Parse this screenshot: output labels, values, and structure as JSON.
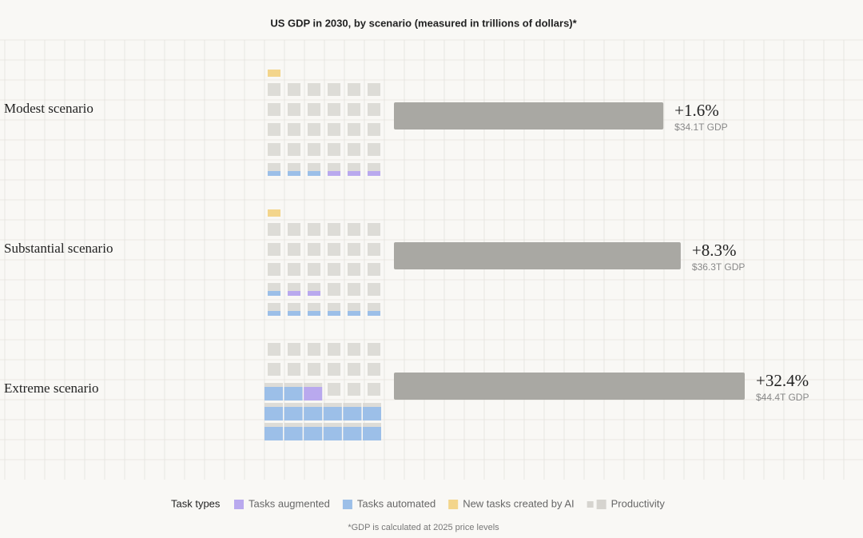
{
  "chart_data": {
    "type": "bar",
    "title": "US GDP in 2030, by scenario (measured in trillions of dollars)*",
    "categories": [
      "Modest scenario",
      "Substantial scenario",
      "Extreme scenario"
    ],
    "values": [
      34.1,
      36.3,
      44.4
    ],
    "value_labels": [
      "$34.1T GDP",
      "$36.3T GDP",
      "$44.4T GDP"
    ],
    "growth": [
      1.6,
      8.3,
      32.4
    ],
    "growth_labels": [
      "+1.6%",
      "+8.3%",
      "+32.4%"
    ],
    "color": "#a9a8a3",
    "legend_title": "Task types",
    "legend": [
      {
        "name": "Tasks augmented",
        "color": "#b9a9ee"
      },
      {
        "name": "Tasks automated",
        "color": "#9cbfe8"
      },
      {
        "name": "New tasks created by AI",
        "color": "#f3d58b"
      },
      {
        "name": "Productivity",
        "color": "#d6d4cf"
      }
    ],
    "footnote": "*GDP is calculated at 2025 price levels"
  }
}
